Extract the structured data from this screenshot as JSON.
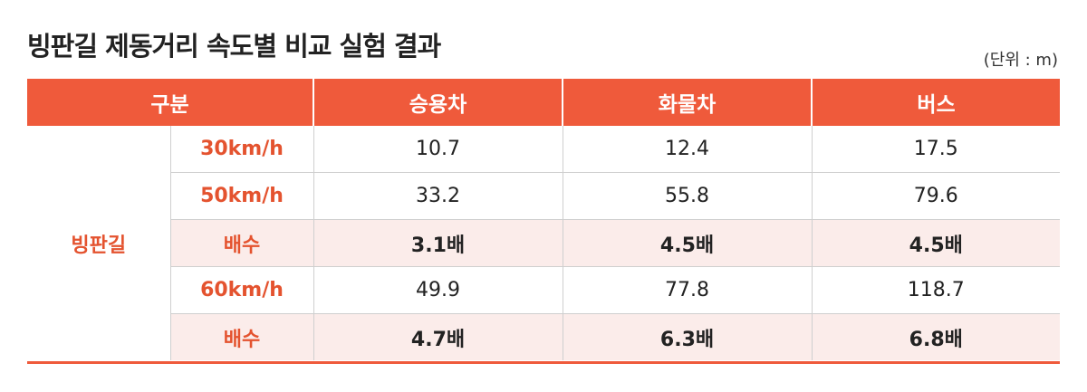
{
  "title": "빙판길 제동거리 속도별 비교 실험 결과",
  "unit": "(단위 : m)",
  "colors": {
    "header_bg": "#ef5a3b",
    "accent_text": "#e4532f",
    "ratio_row_bg": "#fbecea"
  },
  "chart_data": {
    "type": "table",
    "title": "빙판길 제동거리 속도별 비교 실험 결과",
    "unit": "(단위 : m)",
    "header": [
      "구분",
      "승용차",
      "화물차",
      "버스"
    ],
    "group_label": "빙판길",
    "rows": [
      {
        "label": "30km/h",
        "values": [
          "10.7",
          "12.4",
          "17.5"
        ]
      },
      {
        "label": "50km/h",
        "values": [
          "33.2",
          "55.8",
          "79.6"
        ]
      },
      {
        "label": "배수",
        "values": [
          "3.1배",
          "4.5배",
          "4.5배"
        ]
      },
      {
        "label": "60km/h",
        "values": [
          "49.9",
          "77.8",
          "118.7"
        ]
      },
      {
        "label": "배수",
        "values": [
          "4.7배",
          "6.3배",
          "6.8배"
        ]
      }
    ]
  }
}
